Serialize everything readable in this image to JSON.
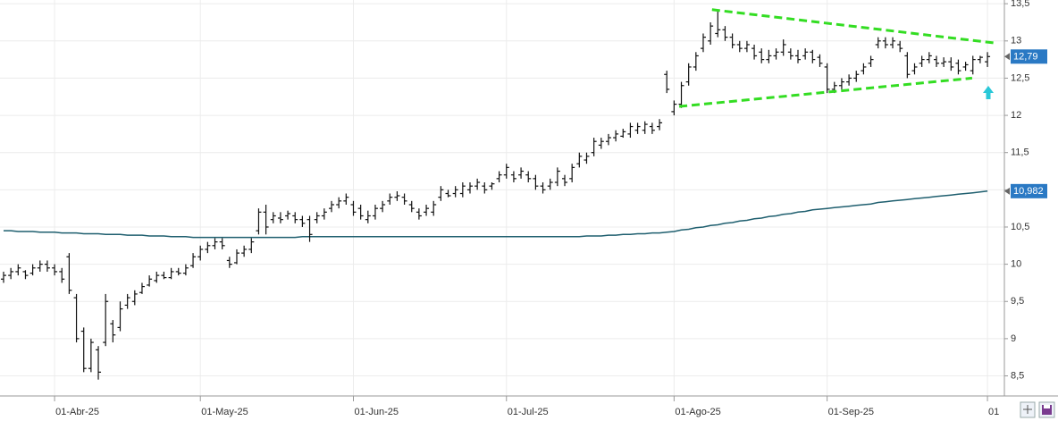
{
  "chart_data": {
    "type": "ohlc",
    "color": "#111111",
    "categories": [
      null,
      null,
      null,
      null,
      null,
      null,
      null,
      "01-Abr-25",
      null,
      null,
      null,
      null,
      null,
      null,
      null,
      null,
      null,
      null,
      null,
      null,
      null,
      null,
      null,
      null,
      null,
      null,
      null,
      "01-May-25",
      null,
      null,
      null,
      null,
      null,
      null,
      null,
      null,
      null,
      null,
      null,
      null,
      null,
      null,
      null,
      null,
      null,
      null,
      null,
      null,
      "01-Jun-25",
      null,
      null,
      null,
      null,
      null,
      null,
      null,
      null,
      null,
      null,
      null,
      null,
      null,
      null,
      null,
      null,
      null,
      null,
      null,
      null,
      "01-Jul-25",
      null,
      null,
      null,
      null,
      null,
      null,
      null,
      null,
      null,
      null,
      null,
      null,
      null,
      null,
      null,
      null,
      null,
      null,
      null,
      null,
      null,
      null,
      "01-Ago-25",
      null,
      null,
      null,
      null,
      null,
      null,
      null,
      null,
      null,
      null,
      null,
      null,
      null,
      null,
      null,
      null,
      null,
      null,
      null,
      null,
      "01-Sep-25",
      null,
      null,
      null,
      null,
      null,
      null,
      null,
      null,
      null,
      null,
      null,
      null,
      null,
      null,
      null,
      null,
      null,
      null,
      null,
      null,
      null,
      "01"
    ],
    "open": [
      9.8,
      9.85,
      9.9,
      9.9,
      9.88,
      9.95,
      10.0,
      9.95,
      9.9,
      10.1,
      9.55,
      9.1,
      8.6,
      8.85,
      8.95,
      9.2,
      9.15,
      9.45,
      9.5,
      9.62,
      9.72,
      9.78,
      9.85,
      9.82,
      9.9,
      9.88,
      9.98,
      10.1,
      10.2,
      10.25,
      10.3,
      10.05,
      10.02,
      10.15,
      10.2,
      10.45,
      10.7,
      10.6,
      10.62,
      10.65,
      10.65,
      10.6,
      10.6,
      10.6,
      10.65,
      10.75,
      10.8,
      10.85,
      10.8,
      10.75,
      10.6,
      10.65,
      10.75,
      10.85,
      10.9,
      10.9,
      10.8,
      10.7,
      10.7,
      10.7,
      10.9,
      10.95,
      10.95,
      10.95,
      11.0,
      11.05,
      11.05,
      11.05,
      11.15,
      11.2,
      11.2,
      11.2,
      11.2,
      11.15,
      11.05,
      11.05,
      11.1,
      11.15,
      11.15,
      11.35,
      11.4,
      11.5,
      11.6,
      11.65,
      11.7,
      11.72,
      11.75,
      11.8,
      11.8,
      11.85,
      11.85,
      12.55,
      12.05,
      12.15,
      12.45,
      12.65,
      12.9,
      13.0,
      13.1,
      13.15,
      13.05,
      12.95,
      12.9,
      12.9,
      12.85,
      12.75,
      12.8,
      12.85,
      12.85,
      12.8,
      12.8,
      12.85,
      12.78,
      12.65,
      12.35,
      12.4,
      12.45,
      12.5,
      12.6,
      12.7,
      12.95,
      13.0,
      12.95,
      12.95,
      12.8,
      12.6,
      12.7,
      12.75,
      12.75,
      12.7,
      12.72,
      12.7,
      12.65,
      12.6,
      12.75,
      12.72
    ],
    "high": [
      9.9,
      9.95,
      10.0,
      9.92,
      10.0,
      10.05,
      10.05,
      10.0,
      9.95,
      10.15,
      9.6,
      9.15,
      9.0,
      8.9,
      9.6,
      9.25,
      9.5,
      9.6,
      9.65,
      9.75,
      9.85,
      9.9,
      9.9,
      9.95,
      9.95,
      10.0,
      10.15,
      10.25,
      10.3,
      10.35,
      10.35,
      10.1,
      10.2,
      10.25,
      10.35,
      10.75,
      10.8,
      10.7,
      10.7,
      10.72,
      10.7,
      10.65,
      10.65,
      10.7,
      10.75,
      10.85,
      10.9,
      10.95,
      10.85,
      10.8,
      10.72,
      10.8,
      10.85,
      10.95,
      10.98,
      10.95,
      10.85,
      10.75,
      10.8,
      10.85,
      11.05,
      11.0,
      11.05,
      11.1,
      11.1,
      11.15,
      11.1,
      11.1,
      11.25,
      11.35,
      11.25,
      11.3,
      11.25,
      11.2,
      11.1,
      11.15,
      11.3,
      11.2,
      11.35,
      11.5,
      11.5,
      11.7,
      11.7,
      11.75,
      11.8,
      11.82,
      11.9,
      11.9,
      11.92,
      11.9,
      11.95,
      12.6,
      12.2,
      12.45,
      12.7,
      12.85,
      13.1,
      13.25,
      13.4,
      13.2,
      13.1,
      13.0,
      13.0,
      12.95,
      12.9,
      12.88,
      12.9,
      13.02,
      12.9,
      12.88,
      12.9,
      12.88,
      12.82,
      12.7,
      12.45,
      12.5,
      12.55,
      12.6,
      12.7,
      12.8,
      13.05,
      13.05,
      13.05,
      13.0,
      12.85,
      12.7,
      12.8,
      12.85,
      12.8,
      12.78,
      12.78,
      12.75,
      12.72,
      12.8,
      12.8,
      12.85
    ],
    "low": [
      9.75,
      9.8,
      9.85,
      9.8,
      9.85,
      9.9,
      9.9,
      9.85,
      9.75,
      9.6,
      8.95,
      8.55,
      8.55,
      8.45,
      8.9,
      8.95,
      9.1,
      9.4,
      9.45,
      9.6,
      9.7,
      9.75,
      9.8,
      9.8,
      9.85,
      9.85,
      9.95,
      10.05,
      10.15,
      10.2,
      10.2,
      9.95,
      10.0,
      10.1,
      10.15,
      10.4,
      10.4,
      10.55,
      10.55,
      10.6,
      10.55,
      10.5,
      10.3,
      10.55,
      10.6,
      10.7,
      10.75,
      10.8,
      10.65,
      10.6,
      10.55,
      10.6,
      10.7,
      10.8,
      10.85,
      10.8,
      10.7,
      10.6,
      10.65,
      10.65,
      10.85,
      10.9,
      10.9,
      10.9,
      10.95,
      11.0,
      10.95,
      11.0,
      11.1,
      11.15,
      11.1,
      11.15,
      11.1,
      11.0,
      10.95,
      11.0,
      11.05,
      11.05,
      11.1,
      11.3,
      11.35,
      11.45,
      11.55,
      11.6,
      11.65,
      11.7,
      11.7,
      11.75,
      11.75,
      11.75,
      11.8,
      12.3,
      12.0,
      12.1,
      12.4,
      12.6,
      12.85,
      12.95,
      13.05,
      13.0,
      12.9,
      12.85,
      12.85,
      12.75,
      12.7,
      12.7,
      12.75,
      12.8,
      12.75,
      12.7,
      12.75,
      12.7,
      12.65,
      12.3,
      12.3,
      12.35,
      12.4,
      12.45,
      12.55,
      12.65,
      12.9,
      12.9,
      12.9,
      12.85,
      12.5,
      12.55,
      12.65,
      12.7,
      12.65,
      12.65,
      12.6,
      12.55,
      12.6,
      12.55,
      12.7,
      12.65
    ],
    "close": [
      9.85,
      9.9,
      9.95,
      9.85,
      9.95,
      10.0,
      9.95,
      9.9,
      9.8,
      9.65,
      9.0,
      8.6,
      8.95,
      8.55,
      9.5,
      9.05,
      9.4,
      9.55,
      9.6,
      9.7,
      9.8,
      9.85,
      9.82,
      9.9,
      9.88,
      9.95,
      10.1,
      10.2,
      10.25,
      10.3,
      10.25,
      10.0,
      10.15,
      10.2,
      10.3,
      10.7,
      10.5,
      10.65,
      10.6,
      10.68,
      10.6,
      10.55,
      10.4,
      10.65,
      10.7,
      10.8,
      10.85,
      10.9,
      10.7,
      10.65,
      10.65,
      10.75,
      10.8,
      10.9,
      10.92,
      10.85,
      10.75,
      10.65,
      10.75,
      10.8,
      11.0,
      10.92,
      11.0,
      11.05,
      11.05,
      11.1,
      11.0,
      11.08,
      11.2,
      11.3,
      11.15,
      11.25,
      11.15,
      11.05,
      11.0,
      11.1,
      11.25,
      11.1,
      11.3,
      11.45,
      11.45,
      11.65,
      11.65,
      11.7,
      11.75,
      11.78,
      11.85,
      11.85,
      11.88,
      11.8,
      11.9,
      12.35,
      12.15,
      12.4,
      12.65,
      12.8,
      13.05,
      13.2,
      13.15,
      13.05,
      12.95,
      12.9,
      12.95,
      12.8,
      12.75,
      12.8,
      12.85,
      12.95,
      12.8,
      12.75,
      12.85,
      12.75,
      12.7,
      12.35,
      12.4,
      12.45,
      12.5,
      12.55,
      12.65,
      12.75,
      13.0,
      12.95,
      13.0,
      12.9,
      12.55,
      12.65,
      12.75,
      12.8,
      12.7,
      12.72,
      12.65,
      12.6,
      12.68,
      12.75,
      12.78,
      12.79
    ],
    "moving_average": {
      "color": "#1f5f6f",
      "values": [
        10.45,
        10.45,
        10.44,
        10.44,
        10.44,
        10.43,
        10.43,
        10.43,
        10.42,
        10.42,
        10.42,
        10.41,
        10.41,
        10.41,
        10.4,
        10.4,
        10.4,
        10.39,
        10.39,
        10.39,
        10.38,
        10.38,
        10.38,
        10.37,
        10.37,
        10.37,
        10.36,
        10.36,
        10.36,
        10.36,
        10.36,
        10.36,
        10.36,
        10.36,
        10.36,
        10.36,
        10.36,
        10.36,
        10.36,
        10.36,
        10.36,
        10.37,
        10.37,
        10.37,
        10.37,
        10.37,
        10.37,
        10.37,
        10.37,
        10.37,
        10.37,
        10.37,
        10.37,
        10.37,
        10.37,
        10.37,
        10.37,
        10.37,
        10.37,
        10.37,
        10.37,
        10.37,
        10.37,
        10.37,
        10.37,
        10.37,
        10.37,
        10.37,
        10.37,
        10.37,
        10.37,
        10.37,
        10.37,
        10.37,
        10.37,
        10.37,
        10.37,
        10.37,
        10.37,
        10.37,
        10.38,
        10.38,
        10.38,
        10.39,
        10.39,
        10.4,
        10.4,
        10.41,
        10.41,
        10.42,
        10.42,
        10.43,
        10.44,
        10.46,
        10.47,
        10.49,
        10.5,
        10.52,
        10.53,
        10.55,
        10.56,
        10.58,
        10.59,
        10.61,
        10.62,
        10.64,
        10.65,
        10.67,
        10.68,
        10.7,
        10.71,
        10.73,
        10.74,
        10.75,
        10.76,
        10.77,
        10.78,
        10.79,
        10.8,
        10.81,
        10.83,
        10.84,
        10.85,
        10.86,
        10.87,
        10.88,
        10.89,
        10.9,
        10.91,
        10.92,
        10.93,
        10.94,
        10.95,
        10.96,
        10.97,
        10.982
      ]
    },
    "price_labels": [
      {
        "value": 12.79,
        "label": "12,79"
      },
      {
        "value": 10.982,
        "label": "10,982"
      }
    ],
    "trendlines": {
      "color": "#33dd22",
      "lines": [
        {
          "x": [
            97.2,
            136.2
          ],
          "y": [
            13.42,
            12.97
          ]
        },
        {
          "x": [
            92.7,
            132.9
          ],
          "y": [
            12.12,
            12.5
          ]
        }
      ]
    },
    "ylim": [
      8.23,
      13.55
    ],
    "yticks": [
      {
        "value": 8.5,
        "label": "8,5"
      },
      9,
      {
        "value": 9.5,
        "label": "9,5"
      },
      10,
      {
        "value": 10.5,
        "label": "10,5"
      },
      11,
      {
        "value": 11.5,
        "label": "11,5"
      },
      12,
      {
        "value": 12.5,
        "label": "12,5"
      },
      13,
      {
        "value": 13.5,
        "label": "13,5"
      }
    ],
    "grid": true
  }
}
